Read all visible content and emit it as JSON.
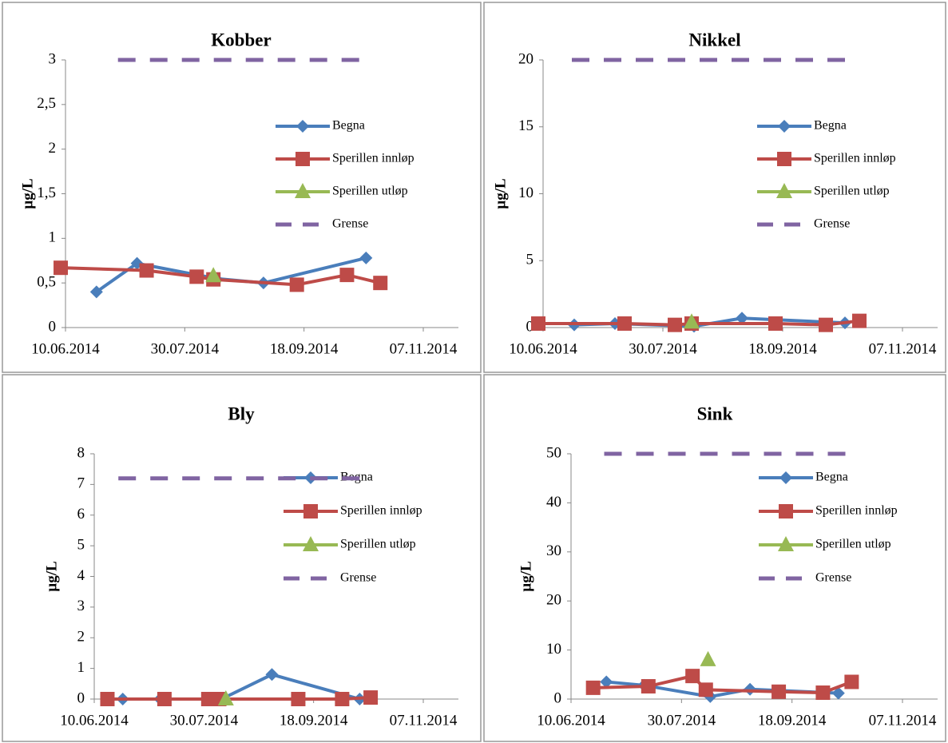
{
  "chart_data": [
    {
      "type": "line",
      "title": "Kobber",
      "y_label": "µg/L",
      "legend": "right",
      "xlim": [
        41800,
        41950
      ],
      "xticks": [
        {
          "value": 41800,
          "label": "10.06.2014"
        },
        {
          "value": 41850,
          "label": "30.07.2014"
        },
        {
          "value": 41900,
          "label": "18.09.2014"
        },
        {
          "value": 41950,
          "label": "07.11.2014"
        }
      ],
      "ylim": [
        0,
        3
      ],
      "yticks": [
        0,
        {
          "value": 0.5,
          "label": "0,5"
        },
        1,
        {
          "value": 1.5,
          "label": "1,5"
        },
        2,
        {
          "value": 2.5,
          "label": "2,5"
        },
        3
      ],
      "series": [
        {
          "name": "Begna",
          "color": "#4a7ebb",
          "marker": "diamond",
          "x": [
            41813,
            41830,
            41863,
            41883,
            41926
          ],
          "values": [
            0.4,
            0.72,
            0.55,
            0.5,
            0.78
          ]
        },
        {
          "name": "Sperillen innløp",
          "color": "#be4b48",
          "marker": "square",
          "x": [
            41798,
            41834,
            41855,
            41862,
            41897,
            41918,
            41932
          ],
          "values": [
            0.67,
            0.64,
            0.57,
            0.54,
            0.48,
            0.59,
            0.5
          ]
        },
        {
          "name": "Sperillen utløp",
          "color": "#98b954",
          "marker": "triangle",
          "x": [
            41862
          ],
          "values": [
            0.58
          ]
        },
        {
          "name": "Grense",
          "color": "#8064a2",
          "line_style": "dashed",
          "x": [
            41822,
            41927
          ],
          "values": [
            3,
            3
          ]
        }
      ]
    },
    {
      "type": "line",
      "title": "Nikkel",
      "y_label": "µg/L",
      "legend": "right",
      "xlim": [
        41800,
        41950
      ],
      "xticks": [
        {
          "value": 41800,
          "label": "10.06.2014"
        },
        {
          "value": 41850,
          "label": "30.07.2014"
        },
        {
          "value": 41900,
          "label": "18.09.2014"
        },
        {
          "value": 41950,
          "label": "07.11.2014"
        }
      ],
      "ylim": [
        0,
        20
      ],
      "yticks": [
        0,
        5,
        10,
        15,
        20
      ],
      "series": [
        {
          "name": "Begna",
          "color": "#4a7ebb",
          "marker": "diamond",
          "x": [
            41813,
            41830,
            41863,
            41883,
            41926
          ],
          "values": [
            0.2,
            0.3,
            0.1,
            0.7,
            0.35
          ]
        },
        {
          "name": "Sperillen innløp",
          "color": "#be4b48",
          "marker": "square",
          "x": [
            41798,
            41834,
            41855,
            41862,
            41897,
            41918,
            41932
          ],
          "values": [
            0.3,
            0.3,
            0.2,
            0.3,
            0.3,
            0.2,
            0.5
          ]
        },
        {
          "name": "Sperillen utløp",
          "color": "#98b954",
          "marker": "triangle",
          "x": [
            41862
          ],
          "values": [
            0.4
          ]
        },
        {
          "name": "Grense",
          "color": "#8064a2",
          "line_style": "dashed",
          "x": [
            41812,
            41927
          ],
          "values": [
            20,
            20
          ]
        }
      ]
    },
    {
      "type": "line",
      "title": "Bly",
      "y_label": "µg/L",
      "legend": "right",
      "xlim": [
        41800,
        41950
      ],
      "xticks": [
        {
          "value": 41800,
          "label": "10.06.2014"
        },
        {
          "value": 41850,
          "label": "30.07.2014"
        },
        {
          "value": 41900,
          "label": "18.09.2014"
        },
        {
          "value": 41950,
          "label": "07.11.2014"
        }
      ],
      "ylim": [
        0,
        8
      ],
      "yticks": [
        0,
        1,
        2,
        3,
        4,
        5,
        6,
        7,
        8
      ],
      "series": [
        {
          "name": "Begna",
          "color": "#4a7ebb",
          "marker": "diamond",
          "x": [
            41813,
            41830,
            41858,
            41881,
            41921
          ],
          "values": [
            0,
            0,
            0,
            0.8,
            0
          ]
        },
        {
          "name": "Sperillen innløp",
          "color": "#be4b48",
          "marker": "square",
          "x": [
            41806,
            41832,
            41852,
            41857,
            41893,
            41913,
            41926
          ],
          "values": [
            0,
            0,
            0,
            0,
            0,
            0,
            0.05
          ]
        },
        {
          "name": "Sperillen utløp",
          "color": "#98b954",
          "marker": "triangle",
          "x": [
            41860
          ],
          "values": [
            0
          ]
        },
        {
          "name": "Grense",
          "color": "#8064a2",
          "line_style": "dashed",
          "x": [
            41811,
            41924
          ],
          "values": [
            7.2,
            7.2
          ]
        }
      ]
    },
    {
      "type": "line",
      "title": "Sink",
      "y_label": "µg/L",
      "legend": "right",
      "xlim": [
        41800,
        41950
      ],
      "xticks": [
        {
          "value": 41800,
          "label": "10.06.2014"
        },
        {
          "value": 41850,
          "label": "30.07.2014"
        },
        {
          "value": 41900,
          "label": "18.09.2014"
        },
        {
          "value": 41950,
          "label": "07.11.2014"
        }
      ],
      "ylim": [
        0,
        50
      ],
      "yticks": [
        0,
        10,
        20,
        30,
        40,
        50
      ],
      "series": [
        {
          "name": "Begna",
          "color": "#4a7ebb",
          "marker": "diamond",
          "x": [
            41816,
            41833,
            41863,
            41881,
            41921
          ],
          "values": [
            3.5,
            2.8,
            0.5,
            2,
            1.2
          ]
        },
        {
          "name": "Sperillen innløp",
          "color": "#be4b48",
          "marker": "square",
          "x": [
            41810,
            41835,
            41855,
            41861,
            41894,
            41914,
            41927
          ],
          "values": [
            2.3,
            2.6,
            4.7,
            1.9,
            1.5,
            1.3,
            3.5
          ]
        },
        {
          "name": "Sperillen utløp",
          "color": "#98b954",
          "marker": "triangle",
          "x": [
            41862
          ],
          "values": [
            8
          ]
        },
        {
          "name": "Grense",
          "color": "#8064a2",
          "line_style": "dashed",
          "x": [
            41815,
            41927
          ],
          "values": [
            50,
            50
          ]
        }
      ]
    }
  ]
}
